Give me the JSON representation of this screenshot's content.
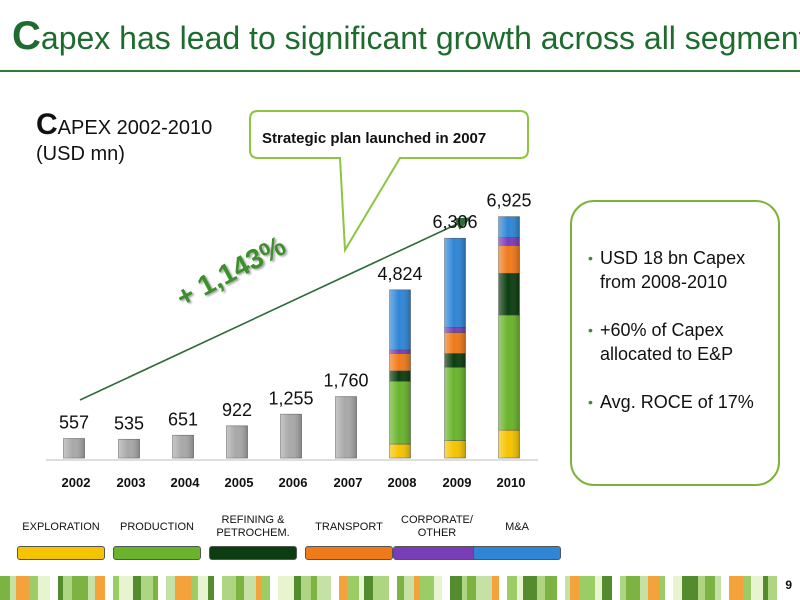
{
  "header": {
    "title_initial": "C",
    "title_rest": "apex has lead to significant growth across all segments"
  },
  "chart_label": {
    "initial": "C",
    "rest": "APEX 2002-2010",
    "unit": "(USD mn)"
  },
  "callout": {
    "text": "Strategic plan launched in 2007"
  },
  "growth_arrow": {
    "label": "+ 1,143%"
  },
  "kpis": [
    {
      "text": "USD 18 bn Capex from 2008-2010"
    },
    {
      "text": "+60% of Capex allocated to E&P"
    },
    {
      "text": "Avg. ROCE of 17%"
    }
  ],
  "legend": [
    {
      "label": "EXPLORATION",
      "color": "#f5c400"
    },
    {
      "label": "PRODUCTION",
      "color": "#6ab42d"
    },
    {
      "label": "REFINING & PETROCHEM.",
      "color": "#0c3d10"
    },
    {
      "label": "TRANSPORT",
      "color": "#f07a1a"
    },
    {
      "label": "CORPORATE/ OTHER",
      "color": "#7a3db8"
    },
    {
      "label": "M&A",
      "color": "#2f86d6"
    }
  ],
  "colors": {
    "gray_bar": "#a8a8a8",
    "accent_green": "#2e7d3a"
  },
  "page_number": "9",
  "chart_data": {
    "type": "bar",
    "categories": [
      "2002",
      "2003",
      "2004",
      "2005",
      "2006",
      "2007",
      "2008",
      "2009",
      "2010"
    ],
    "totals": [
      557,
      535,
      651,
      922,
      1255,
      1760,
      4824,
      6306,
      6925
    ],
    "total_labels": [
      "557",
      "535",
      "651",
      "922",
      "1,255",
      "1,760",
      "4,824",
      "6,306",
      "6,925"
    ],
    "series": [
      {
        "name": "EXPLORATION",
        "values": [
          null,
          null,
          null,
          null,
          null,
          null,
          400,
          500,
          800
        ]
      },
      {
        "name": "PRODUCTION",
        "values": [
          null,
          null,
          null,
          null,
          null,
          null,
          1800,
          2100,
          3300
        ]
      },
      {
        "name": "REFINING & PETROCHEM.",
        "values": [
          null,
          null,
          null,
          null,
          null,
          null,
          300,
          400,
          1200
        ]
      },
      {
        "name": "TRANSPORT",
        "values": [
          null,
          null,
          null,
          null,
          null,
          null,
          500,
          600,
          800
        ]
      },
      {
        "name": "CORPORATE/ OTHER",
        "values": [
          null,
          null,
          null,
          null,
          null,
          null,
          100,
          150,
          225
        ]
      },
      {
        "name": "M&A",
        "values": [
          null,
          null,
          null,
          null,
          null,
          null,
          1724,
          2556,
          600
        ]
      }
    ],
    "stacked_from_year": "2008",
    "ylim": [
      0,
      7000
    ],
    "grid": false,
    "legend_position": "bottom"
  }
}
